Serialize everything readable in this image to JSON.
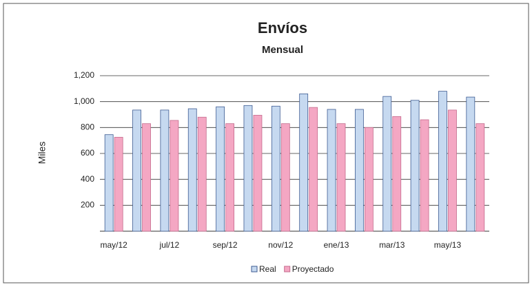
{
  "chart_data": {
    "type": "bar",
    "title": "Envíos",
    "subtitle": "Mensual",
    "y_label": "Miles",
    "categories": [
      "may/12",
      null,
      "jul/12",
      null,
      "sep/12",
      null,
      "nov/12",
      null,
      "ene/13",
      null,
      "mar/13",
      null,
      "may/13",
      null
    ],
    "series": [
      {
        "name": "Real",
        "color": "#c6d9f0",
        "values": [
          745,
          935,
          935,
          945,
          960,
          970,
          965,
          1060,
          940,
          940,
          1040,
          1010,
          1080,
          1035
        ]
      },
      {
        "name": "Proyectado",
        "color": "#f4a7c3",
        "values": [
          725,
          830,
          855,
          880,
          830,
          895,
          830,
          955,
          830,
          800,
          885,
          860,
          935,
          830
        ]
      }
    ],
    "ylim": [
      0,
      1200
    ],
    "yticks": [
      200,
      400,
      600,
      800,
      {
        "value": 1000,
        "label": "1,000"
      },
      {
        "value": 1200,
        "label": "1,200"
      }
    ],
    "grid": true
  }
}
